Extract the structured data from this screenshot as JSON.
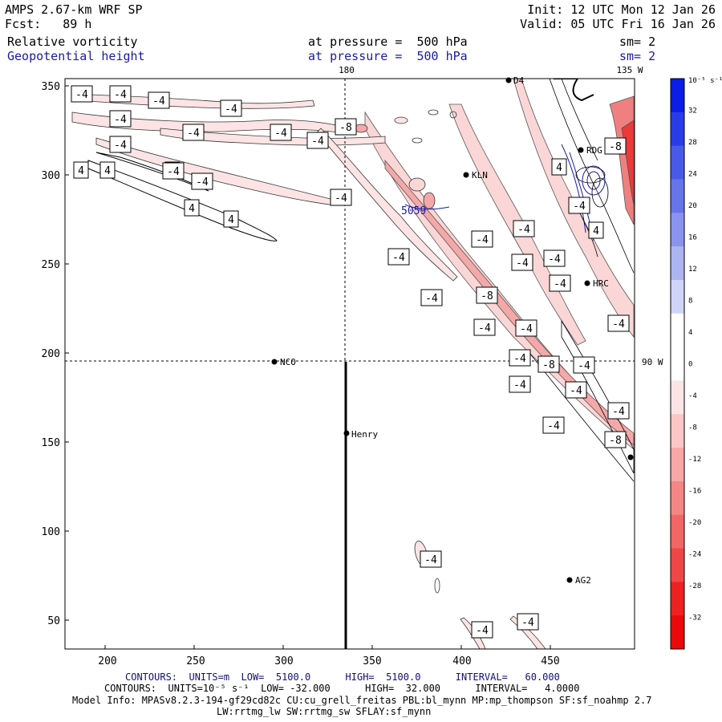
{
  "header": {
    "model": "AMPS 2.67-km WRF SP",
    "forecast": "Fcst:   89 h",
    "init": "Init: 12 UTC Mon 12 Jan 26",
    "valid": "Valid: 05 UTC Fri 16 Jan 26",
    "field1": {
      "name": "Relative vorticity",
      "pressure": "at pressure =  500 hPa",
      "sm": "sm= 2"
    },
    "field2": {
      "name": "Geopotential height",
      "pressure": "at pressure =  500 hPa",
      "sm": "sm= 2"
    }
  },
  "map": {
    "lon_labels": {
      "top_180": "180",
      "top_135w": "135 W",
      "right_90w": "90 W"
    },
    "x_ticks": [
      "200",
      "250",
      "300",
      "350",
      "400",
      "450"
    ],
    "y_ticks": [
      "350",
      "300",
      "250",
      "200",
      "150",
      "100",
      "50"
    ],
    "stations": [
      "NCO",
      "Henry",
      "KLN",
      "RDG",
      "HRC",
      "AG2",
      "D4"
    ],
    "height_label": "5059",
    "contour_labels_positive": [
      "4",
      "4",
      "4",
      "4",
      "4",
      "4",
      "4"
    ],
    "contour_labels_negative": [
      "-4",
      "-4",
      "-4",
      "-4",
      "-4",
      "-4",
      "-4",
      "-4",
      "-4",
      "-4",
      "-4",
      "-4",
      "-4",
      "-4",
      "-4",
      "-4",
      "-4",
      "-4",
      "-4",
      "-4",
      "-4",
      "-4",
      "-4",
      "-4",
      "-4",
      "-4",
      "-4",
      "-4",
      "-4"
    ],
    "contour_labels_minus8": [
      "-8",
      "-8",
      "-8",
      "-8",
      "-8"
    ]
  },
  "colorbar": {
    "unit": "10⁻⁵ s⁻¹",
    "labels": [
      "32",
      "28",
      "24",
      "20",
      "16",
      "12",
      "8",
      "4",
      "0",
      "-4",
      "-8",
      "-12",
      "-16",
      "-20",
      "-24",
      "-28",
      "-32"
    ],
    "colors": [
      "#0a1ee6",
      "#2a3ce8",
      "#4a5ae8",
      "#6674ea",
      "#8a94ee",
      "#acb4f2",
      "#d0d4f8",
      "#ffffff",
      "#ffffff",
      "#fde4e4",
      "#fbc6c6",
      "#f8a6a6",
      "#f58686",
      "#f26666",
      "#ef4646",
      "#ec2222",
      "#ea0a0a"
    ]
  },
  "footer": {
    "contours1": "CONTOURS:  UNITS=m  LOW=  5100.0      HIGH=  5100.0      INTERVAL=   60.000",
    "contours2": "CONTOURS:  UNITS=10⁻⁵ s⁻¹  LOW= -32.000      HIGH=  32.000      INTERVAL=   4.0000",
    "model_info": "Model Info: MPASv8.2.3-194-gf29cd82c CU:cu_grell_freitas PBL:bl_mynn MP:mp_thompson SF:sf_noahmp 2.7",
    "model_info2": "LW:rrtmg_lw SW:rrtmg_sw SFLAY:sf_mynn"
  }
}
